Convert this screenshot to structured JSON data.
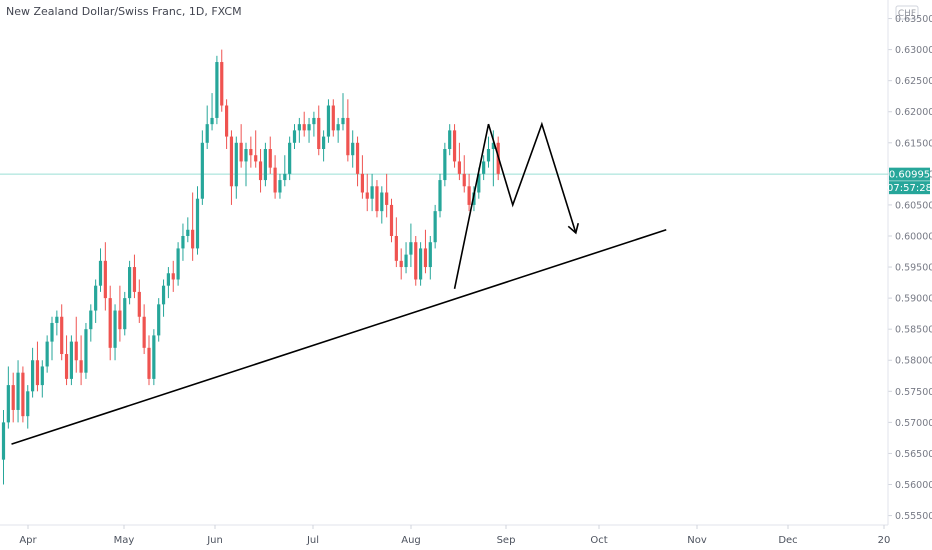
{
  "header": {
    "title": "New Zealand Dollar/Swiss Franc, 1D, FXCM"
  },
  "price_scale": {
    "currency_label": "CHF",
    "ticks": [
      "0.63500",
      "0.63000",
      "0.62500",
      "0.62000",
      "0.61500",
      "0.61000",
      "0.60500",
      "0.60000",
      "0.59500",
      "0.59000",
      "0.58500",
      "0.58000",
      "0.57500",
      "0.57000",
      "0.56500",
      "0.56000",
      "0.55500"
    ]
  },
  "time_scale": {
    "ticks": [
      "Apr",
      "May",
      "Jun",
      "Jul",
      "Aug",
      "Sep",
      "Oct",
      "Nov",
      "Dec",
      "20"
    ]
  },
  "last_price": {
    "value": "0.60995",
    "countdown": "07:57:28",
    "color": "#26a69a"
  },
  "colors": {
    "up": "#26a69a",
    "down": "#ef5350",
    "grid": "#f0f3fa",
    "drawing": "#000000"
  },
  "chart_data": {
    "type": "candlestick",
    "title": "New Zealand Dollar/Swiss Franc, 1D, FXCM",
    "x_ticks": [
      "Apr",
      "May",
      "Jun",
      "Jul",
      "Aug",
      "Sep",
      "Oct",
      "Nov",
      "Dec",
      "20"
    ],
    "ylim": [
      0.553,
      0.6375
    ],
    "y_ticks": [
      0.635,
      0.63,
      0.625,
      0.62,
      0.615,
      0.61,
      0.605,
      0.6,
      0.595,
      0.59,
      0.585,
      0.58,
      0.575,
      0.57,
      0.565,
      0.56,
      0.555
    ],
    "grid": false,
    "series": [
      {
        "values": [
          [
            0.564,
            0.572,
            0.56,
            0.57
          ],
          [
            0.57,
            0.579,
            0.569,
            0.576
          ],
          [
            0.576,
            0.578,
            0.57,
            0.572
          ],
          [
            0.572,
            0.58,
            0.57,
            0.578
          ],
          [
            0.578,
            0.579,
            0.57,
            0.571
          ],
          [
            0.571,
            0.576,
            0.569,
            0.575
          ],
          [
            0.575,
            0.582,
            0.574,
            0.58
          ],
          [
            0.58,
            0.583,
            0.575,
            0.576
          ],
          [
            0.576,
            0.58,
            0.574,
            0.579
          ],
          [
            0.579,
            0.584,
            0.578,
            0.583
          ],
          [
            0.583,
            0.587,
            0.58,
            0.586
          ],
          [
            0.586,
            0.588,
            0.584,
            0.587
          ],
          [
            0.587,
            0.589,
            0.58,
            0.581
          ],
          [
            0.581,
            0.584,
            0.576,
            0.577
          ],
          [
            0.577,
            0.584,
            0.576,
            0.583
          ],
          [
            0.583,
            0.587,
            0.578,
            0.58
          ],
          [
            0.58,
            0.584,
            0.576,
            0.578
          ],
          [
            0.578,
            0.586,
            0.577,
            0.585
          ],
          [
            0.585,
            0.589,
            0.583,
            0.588
          ],
          [
            0.588,
            0.593,
            0.586,
            0.592
          ],
          [
            0.592,
            0.598,
            0.591,
            0.596
          ],
          [
            0.596,
            0.599,
            0.588,
            0.59
          ],
          [
            0.59,
            0.592,
            0.58,
            0.582
          ],
          [
            0.582,
            0.589,
            0.58,
            0.588
          ],
          [
            0.588,
            0.592,
            0.583,
            0.585
          ],
          [
            0.585,
            0.591,
            0.584,
            0.59
          ],
          [
            0.59,
            0.596,
            0.589,
            0.595
          ],
          [
            0.595,
            0.597,
            0.59,
            0.591
          ],
          [
            0.591,
            0.593,
            0.586,
            0.587
          ],
          [
            0.587,
            0.589,
            0.581,
            0.582
          ],
          [
            0.582,
            0.584,
            0.576,
            0.577
          ],
          [
            0.577,
            0.585,
            0.576,
            0.584
          ],
          [
            0.584,
            0.59,
            0.583,
            0.589
          ],
          [
            0.589,
            0.593,
            0.587,
            0.592
          ],
          [
            0.592,
            0.595,
            0.59,
            0.594
          ],
          [
            0.594,
            0.596,
            0.591,
            0.593
          ],
          [
            0.593,
            0.599,
            0.592,
            0.598
          ],
          [
            0.598,
            0.602,
            0.596,
            0.6
          ],
          [
            0.6,
            0.603,
            0.599,
            0.601
          ],
          [
            0.601,
            0.607,
            0.596,
            0.598
          ],
          [
            0.598,
            0.608,
            0.597,
            0.606
          ],
          [
            0.606,
            0.617,
            0.605,
            0.615
          ],
          [
            0.615,
            0.621,
            0.614,
            0.618
          ],
          [
            0.618,
            0.623,
            0.617,
            0.619
          ],
          [
            0.619,
            0.629,
            0.618,
            0.628
          ],
          [
            0.628,
            0.63,
            0.62,
            0.621
          ],
          [
            0.621,
            0.622,
            0.614,
            0.616
          ],
          [
            0.616,
            0.617,
            0.605,
            0.608
          ],
          [
            0.608,
            0.616,
            0.606,
            0.615
          ],
          [
            0.615,
            0.618,
            0.611,
            0.612
          ],
          [
            0.612,
            0.615,
            0.608,
            0.614
          ],
          [
            0.614,
            0.616,
            0.611,
            0.613
          ],
          [
            0.613,
            0.617,
            0.611,
            0.612
          ],
          [
            0.612,
            0.614,
            0.607,
            0.609
          ],
          [
            0.609,
            0.615,
            0.608,
            0.614
          ],
          [
            0.614,
            0.616,
            0.61,
            0.611
          ],
          [
            0.611,
            0.613,
            0.606,
            0.607
          ],
          [
            0.607,
            0.61,
            0.606,
            0.609
          ],
          [
            0.609,
            0.613,
            0.608,
            0.61
          ],
          [
            0.61,
            0.616,
            0.609,
            0.615
          ],
          [
            0.615,
            0.618,
            0.614,
            0.617
          ],
          [
            0.617,
            0.619,
            0.615,
            0.618
          ],
          [
            0.618,
            0.62,
            0.616,
            0.617
          ],
          [
            0.617,
            0.619,
            0.615,
            0.618
          ],
          [
            0.618,
            0.62,
            0.616,
            0.619
          ],
          [
            0.619,
            0.621,
            0.613,
            0.614
          ],
          [
            0.614,
            0.617,
            0.612,
            0.616
          ],
          [
            0.616,
            0.622,
            0.615,
            0.621
          ],
          [
            0.621,
            0.622,
            0.616,
            0.617
          ],
          [
            0.617,
            0.619,
            0.615,
            0.618
          ],
          [
            0.618,
            0.623,
            0.617,
            0.619
          ],
          [
            0.619,
            0.622,
            0.612,
            0.613
          ],
          [
            0.613,
            0.617,
            0.611,
            0.615
          ],
          [
            0.615,
            0.616,
            0.608,
            0.61
          ],
          [
            0.61,
            0.613,
            0.606,
            0.607
          ],
          [
            0.607,
            0.61,
            0.604,
            0.606
          ],
          [
            0.606,
            0.61,
            0.604,
            0.608
          ],
          [
            0.608,
            0.609,
            0.603,
            0.604
          ],
          [
            0.604,
            0.608,
            0.602,
            0.607
          ],
          [
            0.607,
            0.61,
            0.603,
            0.605
          ],
          [
            0.605,
            0.606,
            0.599,
            0.6
          ],
          [
            0.6,
            0.603,
            0.595,
            0.596
          ],
          [
            0.596,
            0.598,
            0.593,
            0.595
          ],
          [
            0.595,
            0.599,
            0.594,
            0.597
          ],
          [
            0.597,
            0.602,
            0.595,
            0.599
          ],
          [
            0.599,
            0.6,
            0.592,
            0.593
          ],
          [
            0.593,
            0.599,
            0.592,
            0.598
          ],
          [
            0.598,
            0.601,
            0.594,
            0.595
          ],
          [
            0.595,
            0.6,
            0.593,
            0.599
          ],
          [
            0.599,
            0.605,
            0.598,
            0.604
          ],
          [
            0.604,
            0.61,
            0.603,
            0.609
          ],
          [
            0.609,
            0.615,
            0.608,
            0.614
          ],
          [
            0.614,
            0.618,
            0.613,
            0.617
          ],
          [
            0.617,
            0.618,
            0.611,
            0.612
          ],
          [
            0.612,
            0.615,
            0.609,
            0.61
          ],
          [
            0.61,
            0.613,
            0.607,
            0.608
          ],
          [
            0.608,
            0.61,
            0.604,
            0.605
          ],
          [
            0.605,
            0.608,
            0.604,
            0.607
          ],
          [
            0.607,
            0.611,
            0.606,
            0.61
          ],
          [
            0.61,
            0.613,
            0.609,
            0.612
          ],
          [
            0.612,
            0.616,
            0.611,
            0.614
          ],
          [
            0.614,
            0.617,
            0.608,
            0.615
          ],
          [
            0.615,
            0.616,
            0.609,
            0.61
          ]
        ]
      }
    ]
  },
  "drawings": {
    "trendline": {
      "from": {
        "bar": 0,
        "price": 0.5665
      },
      "to": {
        "bar": 135,
        "price": 0.601
      }
    },
    "zigzag": [
      {
        "bar": 93,
        "price": 0.5915
      },
      {
        "bar": 100,
        "price": 0.618
      },
      {
        "bar": 105,
        "price": 0.605
      },
      {
        "bar": 111,
        "price": 0.618
      },
      {
        "bar": 118,
        "price": 0.6005
      }
    ]
  }
}
